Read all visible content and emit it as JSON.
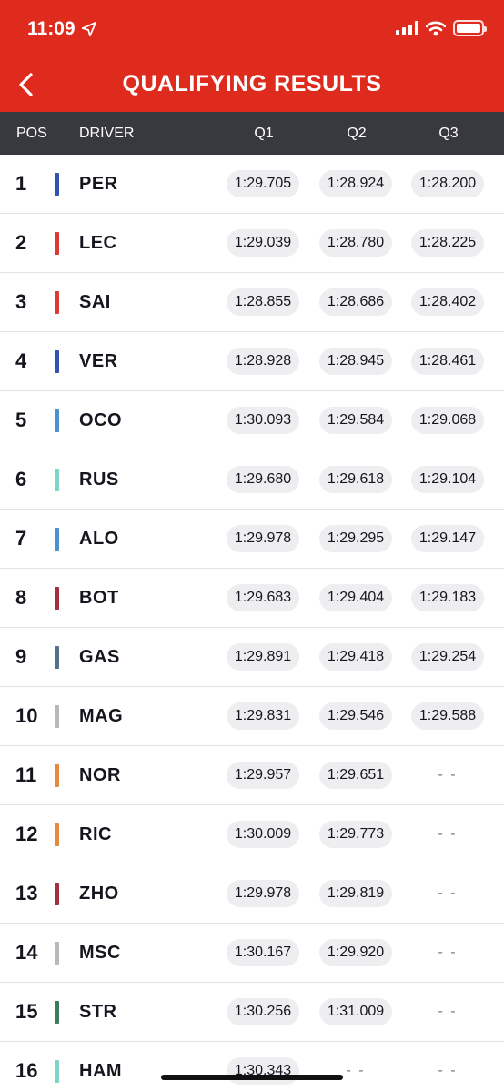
{
  "status_bar": {
    "time": "11:09"
  },
  "header": {
    "title": "QUALIFYING RESULTS",
    "bg_color": "#de2b1e"
  },
  "columns": {
    "pos": "POS",
    "driver": "DRIVER",
    "q1": "Q1",
    "q2": "Q2",
    "q3": "Q3"
  },
  "rows": [
    {
      "pos": "1",
      "driver": "PER",
      "team_color": "#3452b4",
      "q1": "1:29.705",
      "q2": "1:28.924",
      "q3": "1:28.200"
    },
    {
      "pos": "2",
      "driver": "LEC",
      "team_color": "#dc3a33",
      "q1": "1:29.039",
      "q2": "1:28.780",
      "q3": "1:28.225"
    },
    {
      "pos": "3",
      "driver": "SAI",
      "team_color": "#dc3a33",
      "q1": "1:28.855",
      "q2": "1:28.686",
      "q3": "1:28.402"
    },
    {
      "pos": "4",
      "driver": "VER",
      "team_color": "#3452b4",
      "q1": "1:28.928",
      "q2": "1:28.945",
      "q3": "1:28.461"
    },
    {
      "pos": "5",
      "driver": "OCO",
      "team_color": "#4b91d0",
      "q1": "1:30.093",
      "q2": "1:29.584",
      "q3": "1:29.068"
    },
    {
      "pos": "6",
      "driver": "RUS",
      "team_color": "#7ed4c6",
      "q1": "1:29.680",
      "q2": "1:29.618",
      "q3": "1:29.104"
    },
    {
      "pos": "7",
      "driver": "ALO",
      "team_color": "#4b91d0",
      "q1": "1:29.978",
      "q2": "1:29.295",
      "q3": "1:29.147"
    },
    {
      "pos": "8",
      "driver": "BOT",
      "team_color": "#a2303f",
      "q1": "1:29.683",
      "q2": "1:29.404",
      "q3": "1:29.183"
    },
    {
      "pos": "9",
      "driver": "GAS",
      "team_color": "#55708f",
      "q1": "1:29.891",
      "q2": "1:29.418",
      "q3": "1:29.254"
    },
    {
      "pos": "10",
      "driver": "MAG",
      "team_color": "#b7b8ba",
      "q1": "1:29.831",
      "q2": "1:29.546",
      "q3": "1:29.588"
    },
    {
      "pos": "11",
      "driver": "NOR",
      "team_color": "#e38a3c",
      "q1": "1:29.957",
      "q2": "1:29.651",
      "q3": "- -"
    },
    {
      "pos": "12",
      "driver": "RIC",
      "team_color": "#e38a3c",
      "q1": "1:30.009",
      "q2": "1:29.773",
      "q3": "- -"
    },
    {
      "pos": "13",
      "driver": "ZHO",
      "team_color": "#a2303f",
      "q1": "1:29.978",
      "q2": "1:29.819",
      "q3": "- -"
    },
    {
      "pos": "14",
      "driver": "MSC",
      "team_color": "#b7b8ba",
      "q1": "1:30.167",
      "q2": "1:29.920",
      "q3": "- -"
    },
    {
      "pos": "15",
      "driver": "STR",
      "team_color": "#3a7d5a",
      "q1": "1:30.256",
      "q2": "1:31.009",
      "q3": "- -"
    },
    {
      "pos": "16",
      "driver": "HAM",
      "team_color": "#7ed4c6",
      "q1": "1:30.343",
      "q2": "- -",
      "q3": "- -"
    }
  ]
}
